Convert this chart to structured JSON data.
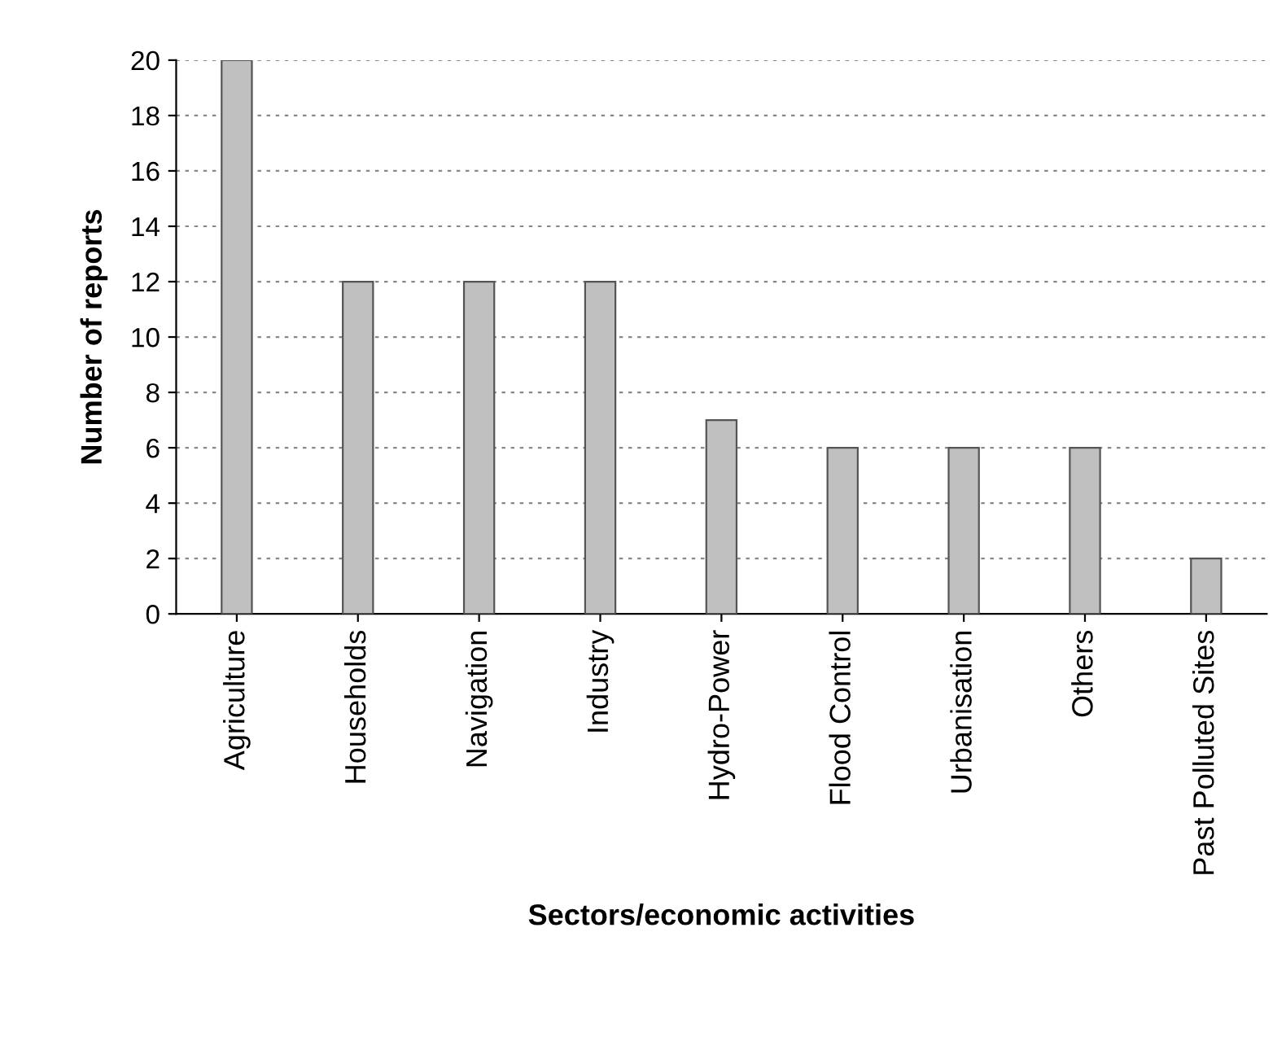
{
  "chart_data": {
    "type": "bar",
    "categories": [
      "Agriculture",
      "Households",
      "Navigation",
      "Industry",
      "Hydro-Power",
      "Flood Control",
      "Urbanisation",
      "Others",
      "Past Polluted Sites"
    ],
    "values": [
      20,
      12,
      12,
      12,
      7,
      6,
      6,
      6,
      2
    ],
    "color": "#c0c0c0",
    "xlabel": "Sectors/economic activities",
    "ylabel": "Number of reports",
    "ylim": [
      0,
      20
    ],
    "yticks": [
      0,
      2,
      4,
      6,
      8,
      10,
      12,
      14,
      16,
      18,
      20
    ],
    "grid": "y"
  }
}
